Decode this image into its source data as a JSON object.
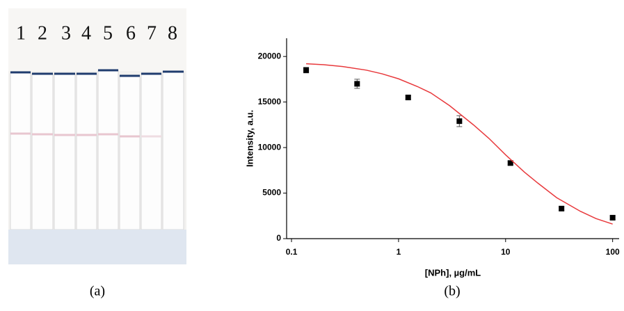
{
  "photo": {
    "lane_labels": [
      "1",
      "2",
      "3",
      "4",
      "5",
      "6",
      "7",
      "8"
    ]
  },
  "captions": {
    "a": "(a)",
    "b": "(b)"
  },
  "chart_data": {
    "type": "scatter",
    "xlabel": "[NPh], µg/mL",
    "ylabel": "Intensity, a.u.",
    "x_scale": "log",
    "xlim": [
      0.09,
      115
    ],
    "ylim": [
      0,
      22000
    ],
    "xticks": [
      0.1,
      1,
      10,
      100
    ],
    "yticks": [
      0,
      5000,
      10000,
      15000,
      20000
    ],
    "series": [
      {
        "type": "scatter",
        "color": "#000000",
        "x": [
          0.137,
          0.41,
          1.23,
          3.7,
          11.1,
          33.3,
          100
        ],
        "values": [
          18500,
          17000,
          15500,
          12900,
          8300,
          3300,
          2300
        ],
        "errors": [
          300,
          500,
          200,
          600,
          200,
          200,
          200
        ]
      },
      {
        "type": "line",
        "color": "#e8393c",
        "x": [
          0.137,
          0.2,
          0.3,
          0.5,
          0.7,
          1,
          1.5,
          2,
          3,
          5,
          7,
          10,
          15,
          20,
          30,
          50,
          70,
          100
        ],
        "values": [
          19200,
          19100,
          18900,
          18500,
          18100,
          17550,
          16700,
          16000,
          14600,
          12500,
          11000,
          9200,
          7300,
          6100,
          4500,
          3000,
          2200,
          1600
        ]
      }
    ]
  }
}
